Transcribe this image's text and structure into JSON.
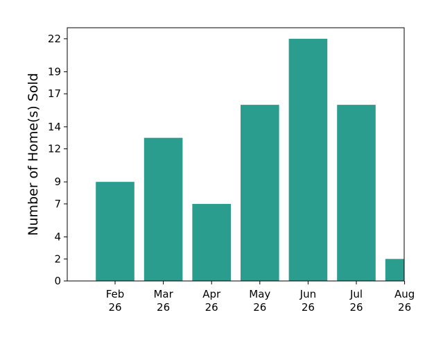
{
  "chart_data": {
    "type": "bar",
    "title": "",
    "xlabel": "",
    "ylabel": "Number of Home(s) Sold",
    "categories": [
      "Feb 26",
      "Mar 26",
      "Apr 26",
      "May 26",
      "Jun 26",
      "Jul 26",
      "Aug 26"
    ],
    "values": [
      9,
      13,
      7,
      16,
      22,
      16,
      2
    ],
    "ylim": [
      0,
      23
    ],
    "yticks": [
      0,
      2,
      4,
      7,
      9,
      12,
      14,
      17,
      19,
      22
    ],
    "grid": false,
    "bar_color": "#2a9d8f",
    "x_tick_labels": [
      {
        "line1": "Feb",
        "line2": "26"
      },
      {
        "line1": "Mar",
        "line2": "26"
      },
      {
        "line1": "Apr",
        "line2": "26"
      },
      {
        "line1": "May",
        "line2": "26"
      },
      {
        "line1": "Jun",
        "line2": "26"
      },
      {
        "line1": "Jul",
        "line2": "26"
      },
      {
        "line1": "Aug",
        "line2": "26"
      }
    ]
  }
}
